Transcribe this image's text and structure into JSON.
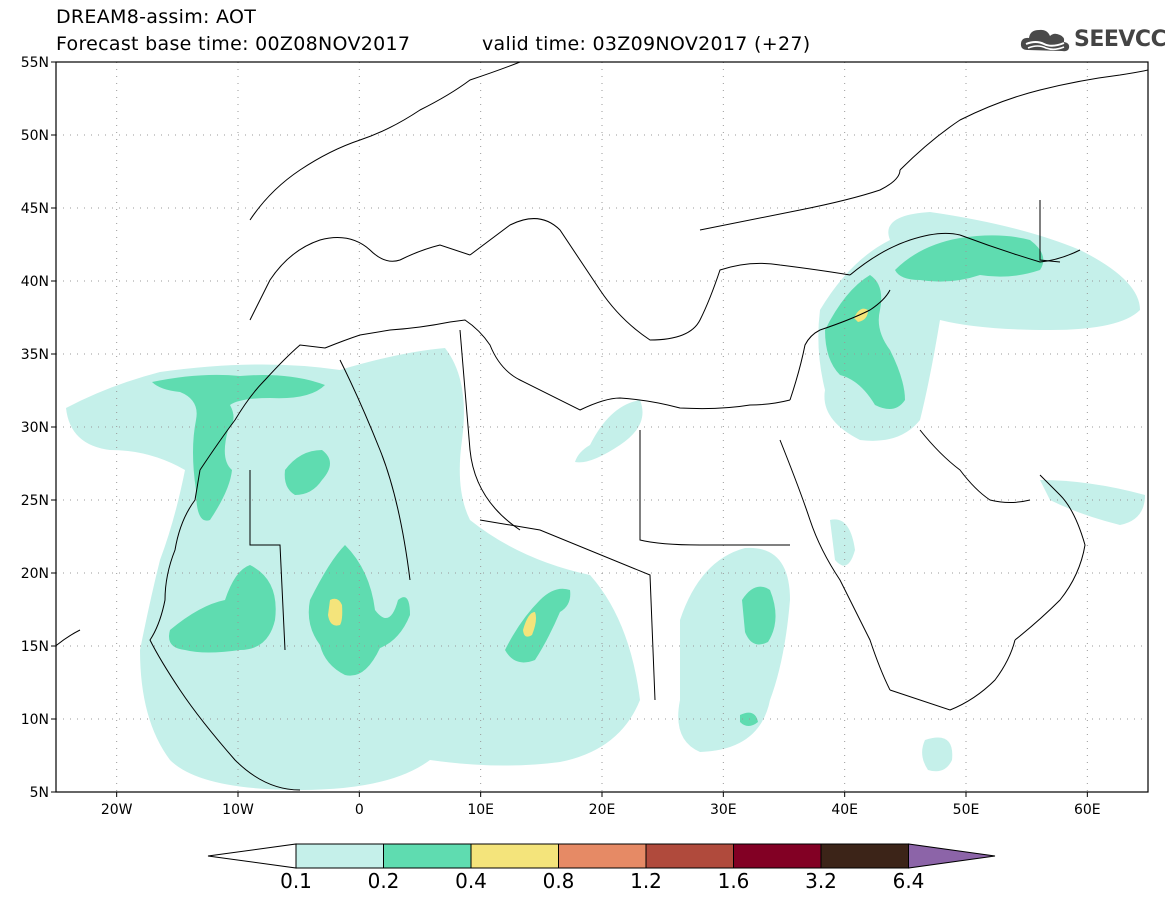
{
  "header": {
    "title": "DREAM8-assim: AOT",
    "base_time": "Forecast base time: 00Z08NOV2017",
    "valid_time": "valid time: 03Z09NOV2017 (+27)"
  },
  "logo": {
    "text": "SEEVCCC",
    "icon": "cloud-logo-icon"
  },
  "map": {
    "lat_labels": [
      "55N",
      "50N",
      "45N",
      "40N",
      "35N",
      "30N",
      "25N",
      "20N",
      "15N",
      "10N",
      "5N"
    ],
    "lat_values": [
      55,
      50,
      45,
      40,
      35,
      30,
      25,
      20,
      15,
      10,
      5
    ],
    "lon_labels": [
      "20W",
      "10W",
      "0",
      "10E",
      "20E",
      "30E",
      "40E",
      "50E",
      "60E"
    ],
    "lon_values": [
      -20,
      -10,
      0,
      10,
      20,
      30,
      40,
      50,
      60
    ],
    "lon_range": [
      -25,
      65
    ],
    "lat_range": [
      5,
      55
    ]
  },
  "colorbar": {
    "labels": [
      "0.1",
      "0.2",
      "0.4",
      "0.8",
      "1.2",
      "1.6",
      "3.2",
      "6.4"
    ],
    "colors": [
      "#c5f0ea",
      "#5fdcb0",
      "#f4e47b",
      "#e68a65",
      "#b04a3c",
      "#820024",
      "#3c2418",
      "#8c64a8"
    ],
    "under_color": "#ffffff"
  },
  "legend_colors": {
    "band_01": "#c5f0ea",
    "band_02": "#5fdcb0",
    "band_04": "#f4e47b"
  }
}
